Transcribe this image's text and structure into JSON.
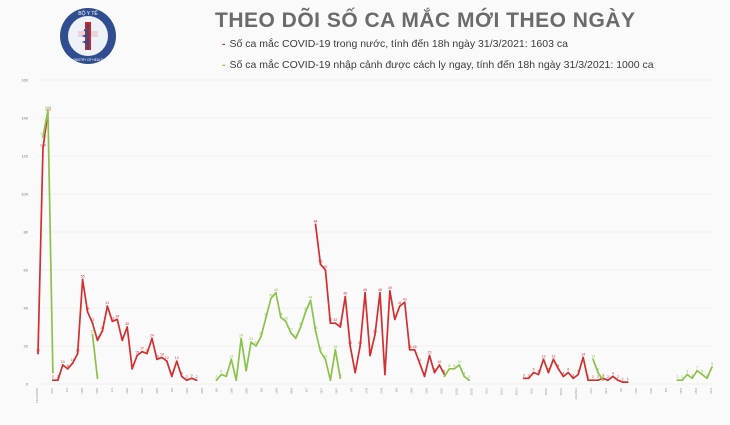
{
  "header": {
    "title": "THEO DÕI SỐ CA MẮC MỚI THEO NGÀY",
    "logo_text": "BỘ Y TẾ",
    "logo_subtext": "MINISTRY OF HEALTH"
  },
  "legend": [
    {
      "mark": "-",
      "text": "Số ca mắc COVID-19 trong nước, tính đến 18h ngày 31/3/2021: 1603 ca",
      "color": "#d32f2f"
    },
    {
      "mark": "-",
      "text": "Số ca mắc COVID-19 nhập cảnh được cách ly ngay, tính đến 18h ngày 31/3/2021: 1000 ca",
      "color": "#8bc34a"
    }
  ],
  "colors": {
    "domestic": "#d32f2f",
    "imported": "#8bc34a",
    "title": "#6b6b6b",
    "grid": "#e6e6e6"
  },
  "chart_data": {
    "type": "line",
    "title": "THEO DÕI SỐ CA MẮC MỚI THEO NGÀY",
    "xlabel": "",
    "ylabel": "",
    "ylim": [
      0,
      160
    ],
    "yticks": [
      0,
      20,
      40,
      60,
      80,
      100,
      120,
      140,
      160
    ],
    "grid": true,
    "legend_position": "top",
    "series": [
      {
        "name": "Số ca mắc COVID-19 trong nước, tính đến 18h ngày 31/3/2021: 1603 ca",
        "color": "#d32f2f",
        "segments": [
          {
            "start": 0,
            "values": [
              16,
              124,
              143
            ]
          },
          {
            "start": 3,
            "values": [
              2,
              2,
              10,
              8,
              11,
              16,
              55,
              38,
              32,
              23,
              28,
              41,
              33,
              34,
              23,
              30,
              8,
              15,
              17,
              16,
              24,
              13,
              14,
              12,
              4,
              12,
              4,
              2,
              3,
              2
            ]
          },
          {
            "start": 56,
            "values": [
              84,
              63,
              60,
              32,
              32,
              30,
              46,
              20,
              6,
              20,
              48,
              15,
              26,
              48,
              5,
              49,
              34,
              41,
              43,
              18,
              18,
              11,
              4,
              15,
              6,
              10,
              5
            ]
          },
          {
            "start": 98,
            "values": [
              3,
              3,
              6,
              5,
              13,
              6,
              13,
              8,
              4,
              6,
              3,
              5,
              14,
              2,
              2,
              2,
              3,
              2,
              4,
              2,
              1,
              1
            ]
          }
        ]
      },
      {
        "name": "Số ca mắc COVID-19 nhập cảnh được cách ly ngay, tính đến 18h ngày 31/3/2021: 1000 ca",
        "color": "#8bc34a",
        "segments": [
          {
            "start": 1,
            "values": [
              130,
              144,
              6
            ]
          },
          {
            "start": 11,
            "values": [
              26,
              3
            ]
          },
          {
            "start": 36,
            "values": [
              2,
              5,
              4,
              13,
              2,
              24,
              7,
              22,
              20,
              25,
              35,
              45,
              48,
              35,
              33,
              27,
              24,
              30,
              38,
              44,
              28,
              17,
              13,
              2,
              18,
              3
            ]
          },
          {
            "start": 82,
            "values": [
              4,
              8,
              8,
              10,
              4,
              2
            ]
          },
          {
            "start": 112,
            "values": [
              13,
              6,
              2
            ]
          },
          {
            "start": 129,
            "values": [
              2,
              2,
              5,
              3,
              7,
              5,
              3,
              9
            ]
          }
        ]
      }
    ],
    "x_labels": [
      "13/12/2019",
      "23/1",
      "1/2",
      "10/2",
      "20/2",
      "1/3",
      "10/3",
      "20/3",
      "30/3",
      "9/4",
      "19/4",
      "29/4",
      "9/5",
      "19/5",
      "29/5",
      "8/6",
      "18/6",
      "28/6",
      "8/7",
      "18/7",
      "28/7",
      "7/8",
      "17/8",
      "27/8",
      "6/9",
      "16/9",
      "26/9",
      "6/10",
      "16/10",
      "26/10",
      "5/11",
      "15/11",
      "25/11",
      "5/12",
      "15/12",
      "25/12",
      "4/1/2021",
      "14/1",
      "24/1",
      "3/2",
      "13/2",
      "23/2",
      "5/3",
      "15/3",
      "25/3",
      "31/3"
    ]
  }
}
